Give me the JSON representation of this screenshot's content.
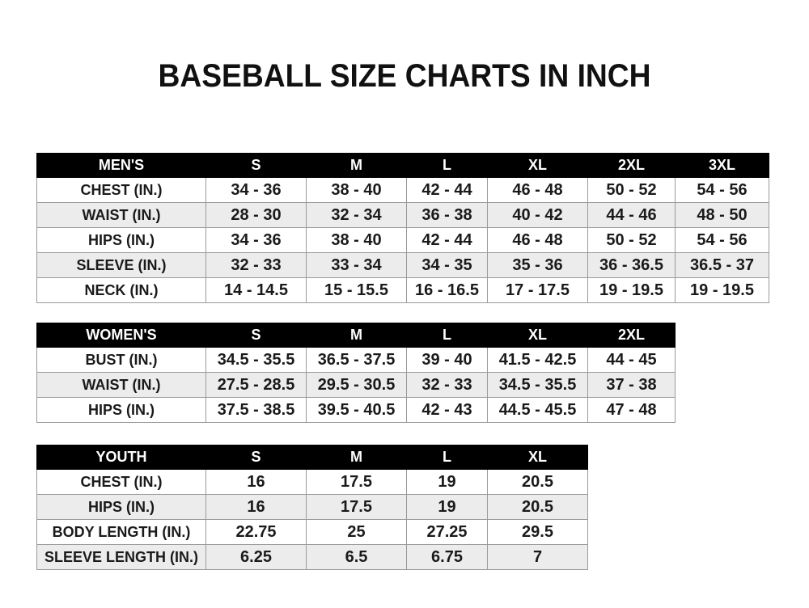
{
  "title": "BASEBALL SIZE CHARTS IN INCH",
  "tables": {
    "men": {
      "header": [
        "MEN'S",
        "S",
        "M",
        "L",
        "XL",
        "2XL",
        "3XL"
      ],
      "rows": [
        [
          "CHEST (IN.)",
          "34 - 36",
          "38 - 40",
          "42 - 44",
          "46 - 48",
          "50 - 52",
          "54 - 56"
        ],
        [
          "WAIST (IN.)",
          "28 - 30",
          "32 - 34",
          "36 - 38",
          "40 - 42",
          "44 - 46",
          "48 - 50"
        ],
        [
          "HIPS (IN.)",
          "34 - 36",
          "38 - 40",
          "42 - 44",
          "46 - 48",
          "50 - 52",
          "54 - 56"
        ],
        [
          "SLEEVE (IN.)",
          "32 - 33",
          "33 - 34",
          "34 - 35",
          "35 - 36",
          "36 - 36.5",
          "36.5 - 37"
        ],
        [
          "NECK (IN.)",
          "14 - 14.5",
          "15 - 15.5",
          "16 - 16.5",
          "17 - 17.5",
          "19 - 19.5",
          "19 - 19.5"
        ]
      ]
    },
    "women": {
      "header": [
        "WOMEN'S",
        "S",
        "M",
        "L",
        "XL",
        "2XL"
      ],
      "rows": [
        [
          "BUST (IN.)",
          "34.5 - 35.5",
          "36.5 - 37.5",
          "39 - 40",
          "41.5 - 42.5",
          "44 - 45"
        ],
        [
          "WAIST (IN.)",
          "27.5 - 28.5",
          "29.5 - 30.5",
          "32 - 33",
          "34.5 - 35.5",
          "37 - 38"
        ],
        [
          "HIPS (IN.)",
          "37.5 - 38.5",
          "39.5 - 40.5",
          "42 - 43",
          "44.5 - 45.5",
          "47 - 48"
        ]
      ]
    },
    "youth": {
      "header": [
        "YOUTH",
        "S",
        "M",
        "L",
        "XL"
      ],
      "rows": [
        [
          "CHEST (IN.)",
          "16",
          "17.5",
          "19",
          "20.5"
        ],
        [
          "HIPS (IN.)",
          "16",
          "17.5",
          "19",
          "20.5"
        ],
        [
          "BODY LENGTH (IN.)",
          "22.75",
          "25",
          "27.25",
          "29.5"
        ],
        [
          "SLEEVE LENGTH (IN.)",
          "6.25",
          "6.5",
          "6.75",
          "7"
        ]
      ]
    }
  },
  "colors": {
    "header_bg": "#000000",
    "header_text": "#ffffff",
    "alt_row": "#ececec",
    "border": "#9a9a9a"
  }
}
